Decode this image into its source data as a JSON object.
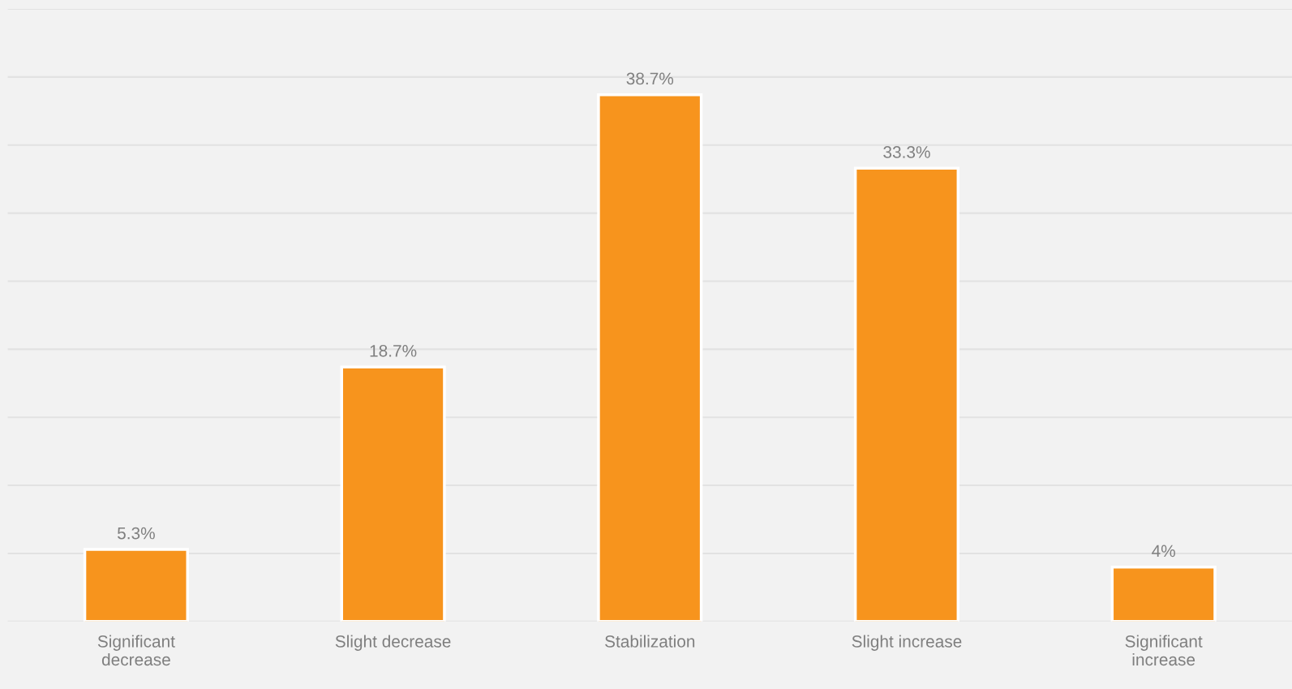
{
  "chart_data": {
    "type": "bar",
    "categories": [
      "Significant decrease",
      "Slight decrease",
      "Stabilization",
      "Slight increase",
      "Significant increase"
    ],
    "values": [
      5.3,
      18.7,
      38.7,
      33.3,
      4
    ],
    "value_labels": [
      "5.3%",
      "18.7%",
      "38.7%",
      "33.3%",
      "4%"
    ],
    "color": "#f7941d",
    "ylim": [
      0,
      45
    ],
    "yticks": [
      {
        "value": 0,
        "label": null
      },
      {
        "value": 5,
        "label": null
      },
      {
        "value": 10,
        "label": null
      },
      {
        "value": 15,
        "label": null
      },
      {
        "value": 20,
        "label": null
      },
      {
        "value": 25,
        "label": null
      },
      {
        "value": 30,
        "label": null
      },
      {
        "value": 35,
        "label": null
      },
      {
        "value": 40,
        "label": null
      },
      {
        "value": 45,
        "label": null
      }
    ],
    "grid": "y",
    "tick_labels": "x"
  }
}
